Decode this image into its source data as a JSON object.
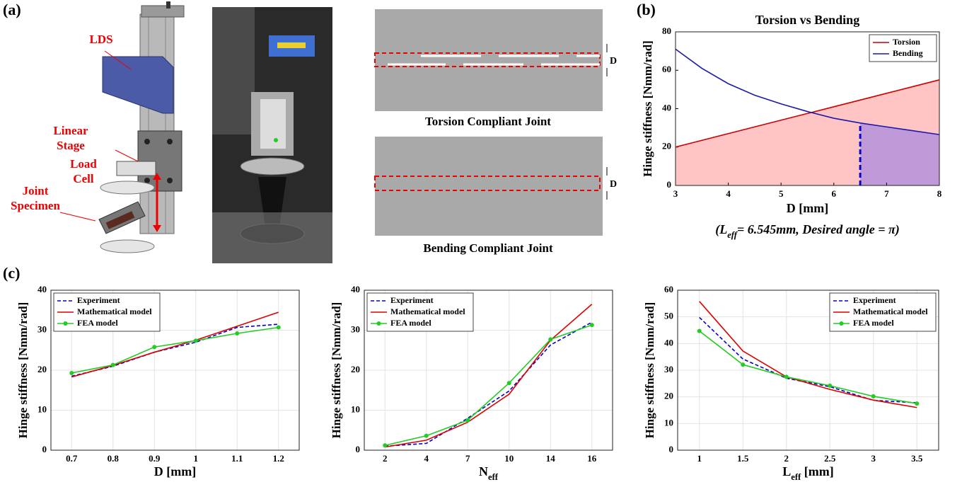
{
  "panel_labels": [
    "(a)",
    "(b)",
    "(c)"
  ],
  "diagram": {
    "labels": [
      "LDS",
      "Linear",
      "Stage",
      "Load",
      "Cell",
      "Joint",
      "Specimen"
    ],
    "dimension_labels": [
      "D",
      "D"
    ],
    "torsion_caption": "Torsion Compliant Joint",
    "bending_caption": "Bending Compliant Joint"
  },
  "chart_data": [
    {
      "type": "area",
      "title": "Torsion vs Bending",
      "xlabel": "D [mm]",
      "ylabel": "Hinge stiffness [Nmm/rad]",
      "caption": [
        "(L",
        "eff",
        "= 6.545mm, Desired angle = π)"
      ],
      "x": [
        3,
        3.5,
        4,
        4.5,
        5,
        5.5,
        6,
        6.5,
        7,
        7.5,
        8
      ],
      "xlim": [
        3,
        8
      ],
      "xticks": [
        3,
        4,
        5,
        6,
        7,
        8
      ],
      "ylim": [
        0,
        80
      ],
      "yticks": [
        0,
        20,
        40,
        60,
        80
      ],
      "grid": false,
      "legend": "upper right",
      "highlight_x": 6.5,
      "highlight_color": "#0000cc",
      "series": [
        {
          "name": "Torsion",
          "color": "#cc0000",
          "fill": "#ffc4c4",
          "values": [
            20,
            23.5,
            27,
            30.5,
            34,
            37.5,
            41,
            44.5,
            48,
            51.5,
            55
          ]
        },
        {
          "name": "Bending",
          "color": "#1a1aaa",
          "fill": "#c09ad8",
          "values": [
            71,
            61,
            53,
            47,
            42.5,
            38.5,
            35,
            32.5,
            30.5,
            28.5,
            26.5
          ]
        }
      ]
    },
    {
      "type": "line",
      "xlabel": "D [mm]",
      "ylabel": "Hinge stiffness [Nmm/rad]",
      "x": [
        0.7,
        0.8,
        0.9,
        1,
        1.1,
        1.2
      ],
      "xlim": [
        0.65,
        1.25
      ],
      "xticks": [
        0.7,
        0.8,
        0.9,
        1,
        1.1,
        1.2
      ],
      "ylim": [
        0,
        40
      ],
      "yticks": [
        0,
        10,
        20,
        30,
        40
      ],
      "grid": true,
      "legend": "upper left",
      "series": [
        {
          "name": "Experiment",
          "color": "#0000cc",
          "style": "dashed",
          "values": [
            18.5,
            21,
            24.5,
            27,
            30.7,
            31.5
          ]
        },
        {
          "name": "Mathematical model",
          "color": "#dd0000",
          "style": "solid",
          "values": [
            18.3,
            21.2,
            24.5,
            27.5,
            31,
            34.5
          ]
        },
        {
          "name": "FEA model",
          "color": "#22cc22",
          "style": "solid",
          "marker": "o",
          "values": [
            19.3,
            21.3,
            25.8,
            27.4,
            29.2,
            30.7
          ]
        }
      ]
    },
    {
      "type": "line",
      "xlabel": [
        "N",
        "eff"
      ],
      "ylabel": "Hinge stiffness [Nmm/rad]",
      "categories": [
        "2",
        "4",
        "7",
        "10",
        "14",
        "16"
      ],
      "ylim": [
        0,
        40
      ],
      "yticks": [
        0,
        10,
        20,
        30,
        40
      ],
      "grid": true,
      "legend": "upper left",
      "series": [
        {
          "name": "Experiment",
          "color": "#0000cc",
          "style": "dashed",
          "values": [
            1,
            1.7,
            8,
            14.8,
            26.3,
            32
          ]
        },
        {
          "name": "Mathematical model",
          "color": "#dd0000",
          "style": "solid",
          "values": [
            0.8,
            2.5,
            7,
            14,
            27.5,
            36.5
          ]
        },
        {
          "name": "FEA model",
          "color": "#22cc22",
          "style": "solid",
          "marker": "o",
          "values": [
            1.2,
            3.6,
            7.5,
            16.8,
            27.7,
            31.3
          ]
        }
      ]
    },
    {
      "type": "line",
      "xlabel": [
        "L",
        "eff",
        " [mm]"
      ],
      "ylabel": "Hinge stiffness [Nmm/rad]",
      "x": [
        1,
        1.5,
        2,
        2.5,
        3,
        3.5
      ],
      "xlim": [
        0.75,
        3.75
      ],
      "xticks": [
        1,
        1.5,
        2,
        2.5,
        3,
        3.5
      ],
      "ylim": [
        0,
        60
      ],
      "yticks": [
        0,
        10,
        20,
        30,
        40,
        50,
        60
      ],
      "grid": true,
      "legend": "upper right",
      "series": [
        {
          "name": "Experiment",
          "color": "#0000cc",
          "style": "dashed",
          "values": [
            49.8,
            34.2,
            27,
            23.8,
            18.7,
            17.8
          ]
        },
        {
          "name": "Mathematical model",
          "color": "#dd0000",
          "style": "solid",
          "values": [
            55.8,
            37.2,
            27.5,
            22.8,
            18.8,
            16
          ]
        },
        {
          "name": "FEA model",
          "color": "#22cc22",
          "style": "solid",
          "marker": "o",
          "values": [
            44.7,
            32.1,
            27.5,
            24.2,
            20.2,
            17.5
          ]
        }
      ]
    }
  ]
}
